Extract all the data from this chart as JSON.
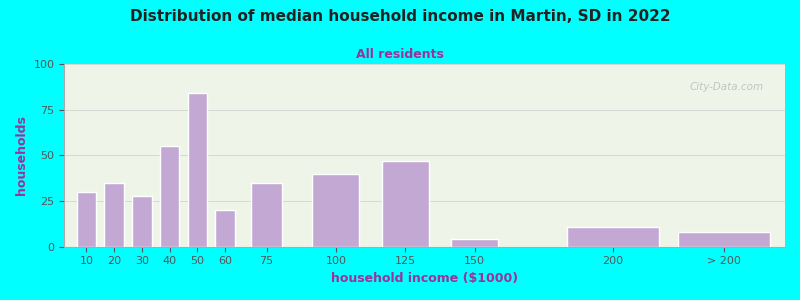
{
  "title": "Distribution of median household income in Martin, SD in 2022",
  "subtitle": "All residents",
  "xlabel": "household income ($1000)",
  "ylabel": "households",
  "background_outer": "#00FFFF",
  "plot_bg_color": "#eef5e8",
  "bar_color": "#C4A8D4",
  "bar_edgecolor": "#ffffff",
  "title_color": "#222222",
  "subtitle_color": "#993399",
  "axis_label_color": "#993399",
  "tick_color": "#555555",
  "watermark": "City-Data.com",
  "watermark_color": "#bbbbbb",
  "yticks": [
    0,
    25,
    50,
    75,
    100
  ],
  "ylim": [
    0,
    100
  ],
  "categories": [
    "10",
    "20",
    "30",
    "40",
    "50",
    "60",
    "75",
    "100",
    "125",
    "150",
    "200",
    "> 200"
  ],
  "values": [
    30,
    35,
    28,
    55,
    84,
    20,
    35,
    40,
    47,
    4,
    11,
    8
  ],
  "bar_positions": [
    10,
    20,
    30,
    40,
    50,
    60,
    75,
    100,
    125,
    150,
    200,
    240
  ],
  "bar_widths": [
    7,
    7,
    7,
    7,
    7,
    7,
    11,
    17,
    17,
    17,
    33,
    33
  ],
  "xtick_positions": [
    10,
    20,
    30,
    40,
    50,
    60,
    75,
    100,
    125,
    150,
    200,
    240
  ],
  "xtick_labels": [
    "10",
    "20",
    "30",
    "40",
    "50",
    "60",
    "75",
    "100",
    "125",
    "150",
    "200",
    "> 200"
  ],
  "xlim": [
    2,
    262
  ],
  "grid_color": "#cccccc",
  "title_fontsize": 11,
  "subtitle_fontsize": 9,
  "axis_label_fontsize": 9,
  "tick_fontsize": 8
}
